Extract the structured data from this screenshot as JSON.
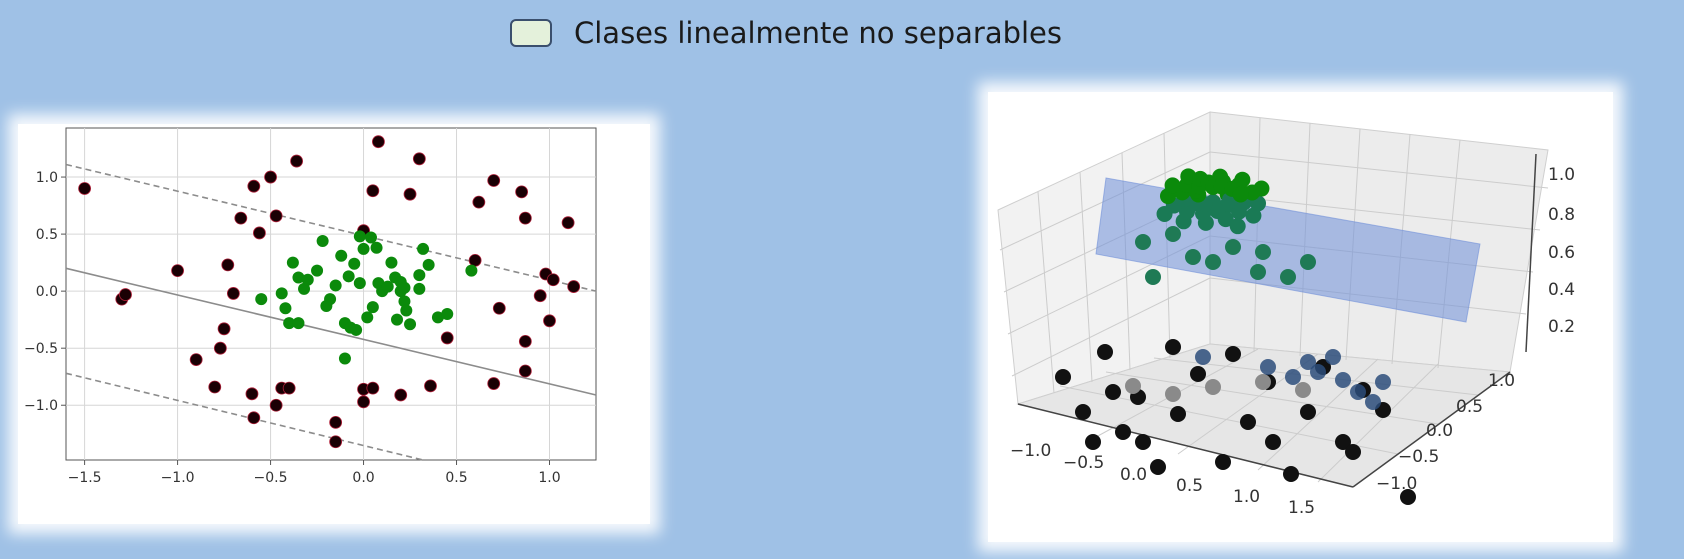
{
  "legend": {
    "label": "Clases linealmente no separables",
    "swatch_color": "#e4f1db"
  },
  "chart_data": [
    {
      "type": "scatter",
      "title": "",
      "xlabel": "",
      "ylabel": "",
      "xlim": [
        -1.6,
        1.25
      ],
      "ylim": [
        -1.48,
        1.43
      ],
      "grid": true,
      "x_ticks": [
        -1.5,
        -1.0,
        -0.5,
        0.0,
        0.5,
        1.0
      ],
      "x_tick_labels": [
        "−1.5",
        "−1.0",
        "−0.5",
        "0.0",
        "0.5",
        "1.0"
      ],
      "y_ticks": [
        1.0,
        0.5,
        0.0,
        -0.5,
        -1.0
      ],
      "y_tick_labels": [
        "1.0",
        "0.5",
        "0.0",
        "−0.5",
        "−1.0"
      ],
      "lines": [
        {
          "style": "dashed",
          "x": [
            -1.6,
            1.25
          ],
          "y": [
            1.11,
            0.0
          ]
        },
        {
          "style": "solid",
          "x": [
            -1.6,
            1.25
          ],
          "y": [
            0.2,
            -0.91
          ]
        },
        {
          "style": "dashed",
          "x": [
            -1.6,
            0.32
          ],
          "y": [
            -0.72,
            -1.48
          ]
        }
      ],
      "series": [
        {
          "color": "#1a0004",
          "points": [
            [
              -1.5,
              0.9
            ],
            [
              -1.3,
              -0.07
            ],
            [
              -1.28,
              -0.03
            ],
            [
              -1.0,
              0.18
            ],
            [
              -0.9,
              -0.6
            ],
            [
              -0.8,
              -0.84
            ],
            [
              -0.77,
              -0.5
            ],
            [
              -0.75,
              -0.33
            ],
            [
              -0.73,
              0.23
            ],
            [
              -0.7,
              -0.02
            ],
            [
              -0.66,
              0.64
            ],
            [
              -0.6,
              -0.9
            ],
            [
              -0.59,
              0.92
            ],
            [
              -0.59,
              -1.11
            ],
            [
              -0.56,
              0.51
            ],
            [
              -0.5,
              1.0
            ],
            [
              -0.47,
              -1.0
            ],
            [
              -0.47,
              0.66
            ],
            [
              -0.44,
              -0.85
            ],
            [
              -0.4,
              -0.85
            ],
            [
              -0.36,
              1.14
            ],
            [
              -0.15,
              -1.15
            ],
            [
              -0.15,
              -1.32
            ],
            [
              0.0,
              -0.86
            ],
            [
              0.0,
              -0.97
            ],
            [
              0.0,
              0.53
            ],
            [
              0.05,
              -0.85
            ],
            [
              0.05,
              0.88
            ],
            [
              0.08,
              1.31
            ],
            [
              0.2,
              -0.91
            ],
            [
              0.25,
              0.85
            ],
            [
              0.3,
              1.16
            ],
            [
              0.36,
              -0.83
            ],
            [
              0.45,
              -0.41
            ],
            [
              0.6,
              0.27
            ],
            [
              0.62,
              0.78
            ],
            [
              0.7,
              0.97
            ],
            [
              0.7,
              -0.81
            ],
            [
              0.73,
              -0.15
            ],
            [
              0.85,
              0.87
            ],
            [
              0.87,
              0.64
            ],
            [
              0.87,
              -0.44
            ],
            [
              0.87,
              -0.7
            ],
            [
              0.95,
              -0.04
            ],
            [
              0.98,
              0.15
            ],
            [
              1.0,
              -0.26
            ],
            [
              1.02,
              0.1
            ],
            [
              1.1,
              0.6
            ],
            [
              1.13,
              0.04
            ]
          ]
        },
        {
          "color": "#0b8a0b",
          "points": [
            [
              -0.55,
              -0.07
            ],
            [
              -0.44,
              -0.02
            ],
            [
              -0.42,
              -0.15
            ],
            [
              -0.4,
              -0.28
            ],
            [
              -0.38,
              0.25
            ],
            [
              -0.35,
              0.12
            ],
            [
              -0.35,
              -0.28
            ],
            [
              -0.32,
              0.02
            ],
            [
              -0.3,
              0.1
            ],
            [
              -0.25,
              0.18
            ],
            [
              -0.22,
              0.44
            ],
            [
              -0.2,
              -0.13
            ],
            [
              -0.18,
              -0.07
            ],
            [
              -0.15,
              0.05
            ],
            [
              -0.12,
              0.31
            ],
            [
              -0.1,
              -0.28
            ],
            [
              -0.1,
              -0.59
            ],
            [
              -0.08,
              0.13
            ],
            [
              -0.07,
              -0.32
            ],
            [
              -0.05,
              0.24
            ],
            [
              -0.04,
              -0.34
            ],
            [
              -0.02,
              0.07
            ],
            [
              -0.02,
              0.48
            ],
            [
              0.0,
              0.37
            ],
            [
              0.02,
              -0.23
            ],
            [
              0.04,
              0.47
            ],
            [
              0.05,
              -0.14
            ],
            [
              0.07,
              0.38
            ],
            [
              0.08,
              0.07
            ],
            [
              0.1,
              0.0
            ],
            [
              0.13,
              0.04
            ],
            [
              0.15,
              0.25
            ],
            [
              0.17,
              0.12
            ],
            [
              0.18,
              -0.25
            ],
            [
              0.2,
              0.0
            ],
            [
              0.2,
              0.08
            ],
            [
              0.22,
              -0.09
            ],
            [
              0.22,
              0.03
            ],
            [
              0.23,
              -0.17
            ],
            [
              0.25,
              -0.29
            ],
            [
              0.3,
              0.14
            ],
            [
              0.3,
              0.02
            ],
            [
              0.32,
              0.37
            ],
            [
              0.35,
              0.23
            ],
            [
              0.4,
              -0.23
            ],
            [
              0.45,
              -0.2
            ],
            [
              0.58,
              0.18
            ]
          ]
        }
      ]
    },
    {
      "type": "scatter3d",
      "title": "",
      "xlim": [
        -1.5,
        1.5
      ],
      "ylim": [
        -1.5,
        1.5
      ],
      "zlim": [
        0.0,
        1.0
      ],
      "grid": true,
      "x_tick_labels": [
        "−1.0",
        "−0.5",
        "0.0",
        "0.5",
        "1.0",
        "1.5"
      ],
      "y_tick_labels": [
        "−1.0",
        "−0.5",
        "0.0",
        "0.5",
        "1.0"
      ],
      "z_tick_labels": [
        "0.2",
        "0.4",
        "0.6",
        "0.8",
        "1.0"
      ],
      "plane": {
        "color": "#7f9fda",
        "z": 0.6
      },
      "series": [
        {
          "color": "#0b8a0b",
          "z": "high"
        },
        {
          "color": "#111111",
          "z": "low"
        }
      ]
    }
  ]
}
